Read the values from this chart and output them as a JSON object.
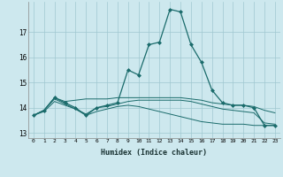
{
  "title": "",
  "xlabel": "Humidex (Indice chaleur)",
  "ylabel": "",
  "bg_color": "#cde8ee",
  "grid_color": "#a0c8d0",
  "line_color": "#1a6b6b",
  "xlim": [
    -0.5,
    23.5
  ],
  "ylim": [
    12.8,
    18.2
  ],
  "yticks": [
    13,
    14,
    15,
    16,
    17
  ],
  "xticks": [
    0,
    1,
    2,
    3,
    4,
    5,
    6,
    7,
    8,
    9,
    10,
    11,
    12,
    13,
    14,
    15,
    16,
    17,
    18,
    19,
    20,
    21,
    22,
    23
  ],
  "line1": {
    "x": [
      0,
      1,
      2,
      3,
      4,
      5,
      6,
      7,
      8,
      9,
      10,
      11,
      12,
      13,
      14,
      15,
      16,
      17,
      18,
      19,
      20,
      21,
      22,
      23
    ],
    "y": [
      13.7,
      13.9,
      14.4,
      14.2,
      14.0,
      13.7,
      14.0,
      14.1,
      14.2,
      15.5,
      15.3,
      16.5,
      16.6,
      17.9,
      17.8,
      16.5,
      15.8,
      14.7,
      14.2,
      14.1,
      14.1,
      14.0,
      13.3,
      13.3
    ],
    "marker": "D",
    "markersize": 2.0
  },
  "line2": {
    "x": [
      0,
      1,
      2,
      3,
      4,
      5,
      6,
      7,
      8,
      9,
      10,
      11,
      12,
      13,
      14,
      15,
      16,
      17,
      18,
      19,
      20,
      21,
      22,
      23
    ],
    "y": [
      13.7,
      13.9,
      14.4,
      14.25,
      14.3,
      14.35,
      14.35,
      14.35,
      14.4,
      14.4,
      14.4,
      14.4,
      14.4,
      14.4,
      14.4,
      14.35,
      14.3,
      14.2,
      14.15,
      14.1,
      14.1,
      14.05,
      13.9,
      13.8
    ],
    "marker": null
  },
  "line3": {
    "x": [
      0,
      1,
      2,
      3,
      4,
      5,
      6,
      7,
      8,
      9,
      10,
      11,
      12,
      13,
      14,
      15,
      16,
      17,
      18,
      19,
      20,
      21,
      22,
      23
    ],
    "y": [
      13.7,
      13.9,
      14.35,
      14.15,
      13.95,
      13.75,
      14.0,
      14.05,
      14.15,
      14.25,
      14.3,
      14.3,
      14.3,
      14.3,
      14.3,
      14.25,
      14.15,
      14.05,
      13.95,
      13.9,
      13.85,
      13.8,
      13.4,
      13.35
    ],
    "marker": null
  },
  "line4": {
    "x": [
      0,
      1,
      2,
      3,
      4,
      5,
      6,
      7,
      8,
      9,
      10,
      11,
      12,
      13,
      14,
      15,
      16,
      17,
      18,
      19,
      20,
      21,
      22,
      23
    ],
    "y": [
      13.7,
      13.85,
      14.25,
      14.1,
      13.95,
      13.7,
      13.85,
      13.95,
      14.05,
      14.1,
      14.05,
      13.95,
      13.85,
      13.75,
      13.65,
      13.55,
      13.45,
      13.4,
      13.35,
      13.35,
      13.35,
      13.3,
      13.3,
      13.3
    ],
    "marker": null
  }
}
